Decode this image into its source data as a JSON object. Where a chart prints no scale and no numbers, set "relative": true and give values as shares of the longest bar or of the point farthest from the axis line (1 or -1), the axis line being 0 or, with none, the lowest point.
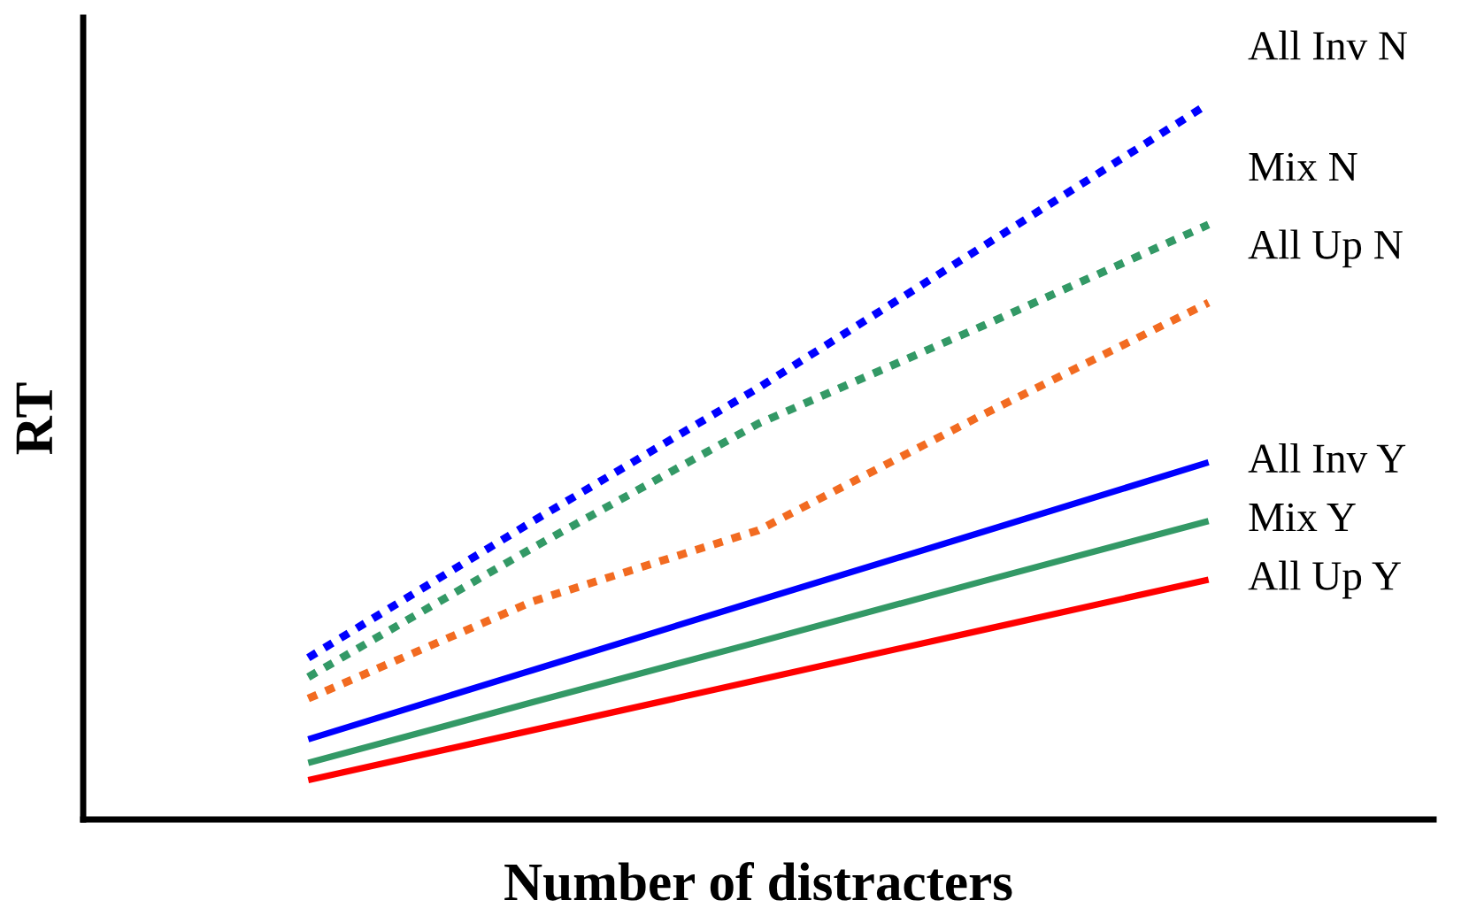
{
  "chart_data": {
    "type": "line",
    "relative": true,
    "xlabel": "Number of distracters",
    "ylabel": "RT",
    "categories": [
      null,
      null,
      null,
      null,
      null,
      null,
      null
    ],
    "series": [
      {
        "name": "All Inv N",
        "color": "#0000ff",
        "line_style": "dotted",
        "values": [
          null,
          0.226,
          0.417,
          0.603,
          0.801,
          1.0,
          null
        ]
      },
      {
        "name": "Mix N",
        "color": "#339966",
        "line_style": "dotted",
        "values": [
          null,
          0.199,
          0.38,
          0.553,
          0.69,
          0.831,
          null
        ]
      },
      {
        "name": "All Up N",
        "color": "#f26b21",
        "line_style": "dotted",
        "values": [
          null,
          0.169,
          0.305,
          0.404,
          0.566,
          0.722,
          null
        ]
      },
      {
        "name": "All Inv Y",
        "color": "#0000ff",
        "line_style": "solid",
        "values": [
          null,
          0.112,
          0.209,
          0.306,
          0.402,
          0.499,
          null
        ]
      },
      {
        "name": "Mix Y",
        "color": "#339966",
        "line_style": "solid",
        "values": [
          null,
          0.079,
          0.164,
          0.248,
          0.333,
          0.417,
          null
        ]
      },
      {
        "name": "All Up Y",
        "color": "#ff0000",
        "line_style": "solid",
        "values": [
          null,
          0.055,
          0.125,
          0.195,
          0.265,
          0.335,
          null
        ]
      }
    ]
  }
}
